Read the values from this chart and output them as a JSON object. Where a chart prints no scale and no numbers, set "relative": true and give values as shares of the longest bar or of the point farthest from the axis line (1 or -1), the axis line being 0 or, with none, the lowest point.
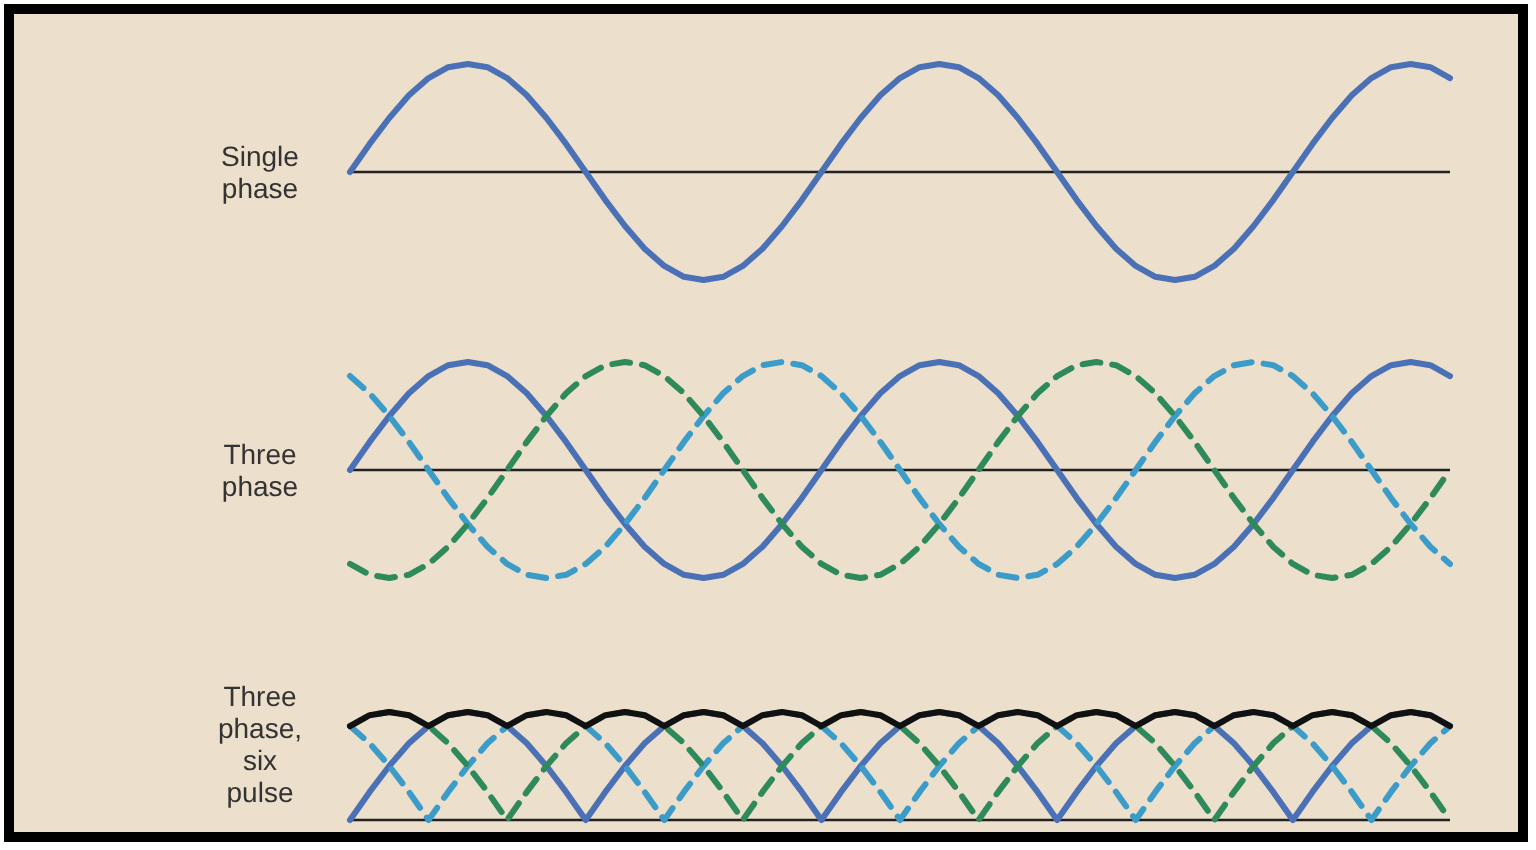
{
  "chart_data": [
    {
      "type": "line",
      "ylabel": "Single phase",
      "relative": true,
      "legend": false,
      "grid": false,
      "marker": "none",
      "categories": [
        null,
        null,
        null,
        null,
        null,
        null,
        null,
        null,
        null,
        null,
        null,
        null,
        null,
        null,
        null,
        null,
        null,
        null,
        null,
        null,
        null,
        null,
        null,
        null,
        null,
        null,
        null,
        null,
        null,
        null,
        null,
        null,
        null,
        null,
        null,
        null,
        null,
        null,
        null,
        null,
        null,
        null,
        null,
        null,
        null,
        null,
        null,
        null,
        null,
        null,
        null,
        null,
        null,
        null,
        null,
        null,
        null
      ],
      "series": [
        {
          "color": "#4a70b5",
          "line_style": "solid",
          "values": [
            0,
            0.26,
            0.5,
            0.71,
            0.87,
            0.97,
            1,
            0.97,
            0.87,
            0.71,
            0.5,
            0.26,
            0,
            -0.26,
            -0.5,
            -0.71,
            -0.87,
            -0.97,
            -1,
            -0.97,
            -0.87,
            -0.71,
            -0.5,
            -0.26,
            0,
            0.26,
            0.5,
            0.71,
            0.87,
            0.97,
            1,
            0.97,
            0.87,
            0.71,
            0.5,
            0.26,
            0,
            -0.26,
            -0.5,
            -0.71,
            -0.87,
            -0.97,
            -1,
            -0.97,
            -0.87,
            -0.71,
            -0.5,
            -0.26,
            0,
            0.26,
            0.5,
            0.71,
            0.87,
            0.97,
            1,
            0.97,
            0.87
          ]
        }
      ]
    },
    {
      "type": "line",
      "ylabel": "Three phase",
      "relative": true,
      "legend": false,
      "grid": false,
      "marker": "none",
      "categories": [
        null,
        null,
        null,
        null,
        null,
        null,
        null,
        null,
        null,
        null,
        null,
        null,
        null,
        null,
        null,
        null,
        null,
        null,
        null,
        null,
        null,
        null,
        null,
        null,
        null,
        null,
        null,
        null,
        null,
        null,
        null,
        null,
        null,
        null,
        null,
        null,
        null,
        null,
        null,
        null,
        null,
        null,
        null,
        null,
        null,
        null,
        null,
        null,
        null,
        null,
        null,
        null,
        null,
        null,
        null,
        null,
        null
      ],
      "series": [
        {
          "color": "#4a70b5",
          "line_style": "solid",
          "values": [
            0,
            0.26,
            0.5,
            0.71,
            0.87,
            0.97,
            1,
            0.97,
            0.87,
            0.71,
            0.5,
            0.26,
            0,
            -0.26,
            -0.5,
            -0.71,
            -0.87,
            -0.97,
            -1,
            -0.97,
            -0.87,
            -0.71,
            -0.5,
            -0.26,
            0,
            0.26,
            0.5,
            0.71,
            0.87,
            0.97,
            1,
            0.97,
            0.87,
            0.71,
            0.5,
            0.26,
            0,
            -0.26,
            -0.5,
            -0.71,
            -0.87,
            -0.97,
            -1,
            -0.97,
            -0.87,
            -0.71,
            -0.5,
            -0.26,
            0,
            0.26,
            0.5,
            0.71,
            0.87,
            0.97,
            1,
            0.97,
            0.87
          ]
        },
        {
          "color": "#3b9cc9",
          "line_style": "dashed",
          "values": [
            0.87,
            0.71,
            0.5,
            0.26,
            0,
            -0.26,
            -0.5,
            -0.71,
            -0.87,
            -0.97,
            -1,
            -0.97,
            -0.87,
            -0.71,
            -0.5,
            -0.26,
            0,
            0.26,
            0.5,
            0.71,
            0.87,
            0.97,
            1,
            0.97,
            0.87,
            0.71,
            0.5,
            0.26,
            0,
            -0.26,
            -0.5,
            -0.71,
            -0.87,
            -0.97,
            -1,
            -0.97,
            -0.87,
            -0.71,
            -0.5,
            -0.26,
            0,
            0.26,
            0.5,
            0.71,
            0.87,
            0.97,
            1,
            0.97,
            0.87,
            0.71,
            0.5,
            0.26,
            0,
            -0.26,
            -0.5,
            -0.71,
            -0.87
          ]
        },
        {
          "color": "#2e8a5a",
          "line_style": "dashed",
          "values": [
            -0.87,
            -0.97,
            -1,
            -0.97,
            -0.87,
            -0.71,
            -0.5,
            -0.26,
            0,
            0.26,
            0.5,
            0.71,
            0.87,
            0.97,
            1,
            0.97,
            0.87,
            0.71,
            0.5,
            0.26,
            0,
            -0.26,
            -0.5,
            -0.71,
            -0.87,
            -0.97,
            -1,
            -0.97,
            -0.87,
            -0.71,
            -0.5,
            -0.26,
            0,
            0.26,
            0.5,
            0.71,
            0.87,
            0.97,
            1,
            0.97,
            0.87,
            0.71,
            0.5,
            0.26,
            0,
            -0.26,
            -0.5,
            -0.71,
            -0.87,
            -0.97,
            -1,
            -0.97,
            -0.87,
            -0.71,
            -0.5,
            -0.26,
            0
          ]
        }
      ]
    },
    {
      "type": "line",
      "ylabel": "Three phase, six pulse",
      "relative": true,
      "legend": false,
      "grid": false,
      "marker": "none",
      "categories": [
        null,
        null,
        null,
        null,
        null,
        null,
        null,
        null,
        null,
        null,
        null,
        null,
        null,
        null,
        null,
        null,
        null,
        null,
        null,
        null,
        null,
        null,
        null,
        null,
        null,
        null,
        null,
        null,
        null,
        null,
        null,
        null,
        null,
        null,
        null,
        null,
        null,
        null,
        null,
        null,
        null,
        null,
        null,
        null,
        null,
        null,
        null,
        null,
        null,
        null,
        null,
        null,
        null,
        null,
        null,
        null,
        null
      ],
      "series": [
        {
          "color": "#4a70b5",
          "line_style": "solid",
          "values": [
            0,
            0.26,
            0.5,
            0.71,
            0.87,
            0.97,
            1,
            0.97,
            0.87,
            0.71,
            0.5,
            0.26,
            0,
            0.26,
            0.5,
            0.71,
            0.87,
            0.97,
            1,
            0.97,
            0.87,
            0.71,
            0.5,
            0.26,
            0,
            0.26,
            0.5,
            0.71,
            0.87,
            0.97,
            1,
            0.97,
            0.87,
            0.71,
            0.5,
            0.26,
            0,
            0.26,
            0.5,
            0.71,
            0.87,
            0.97,
            1,
            0.97,
            0.87,
            0.71,
            0.5,
            0.26,
            0,
            0.26,
            0.5,
            0.71,
            0.87,
            0.97,
            1,
            0.97,
            0.87
          ]
        },
        {
          "color": "#3b9cc9",
          "line_style": "dashed",
          "values": [
            0.87,
            0.71,
            0.5,
            0.26,
            0,
            0.26,
            0.5,
            0.71,
            0.87,
            0.97,
            1,
            0.97,
            0.87,
            0.71,
            0.5,
            0.26,
            0,
            0.26,
            0.5,
            0.71,
            0.87,
            0.97,
            1,
            0.97,
            0.87,
            0.71,
            0.5,
            0.26,
            0,
            0.26,
            0.5,
            0.71,
            0.87,
            0.97,
            1,
            0.97,
            0.87,
            0.71,
            0.5,
            0.26,
            0,
            0.26,
            0.5,
            0.71,
            0.87,
            0.97,
            1,
            0.97,
            0.87,
            0.71,
            0.5,
            0.26,
            0,
            0.26,
            0.5,
            0.71,
            0.87
          ]
        },
        {
          "color": "#2e8a5a",
          "line_style": "dashed",
          "values": [
            0.87,
            0.97,
            1,
            0.97,
            0.87,
            0.71,
            0.5,
            0.26,
            0,
            0.26,
            0.5,
            0.71,
            0.87,
            0.97,
            1,
            0.97,
            0.87,
            0.71,
            0.5,
            0.26,
            0,
            0.26,
            0.5,
            0.71,
            0.87,
            0.97,
            1,
            0.97,
            0.87,
            0.71,
            0.5,
            0.26,
            0,
            0.26,
            0.5,
            0.71,
            0.87,
            0.97,
            1,
            0.97,
            0.87,
            0.71,
            0.5,
            0.26,
            0,
            0.26,
            0.5,
            0.71,
            0.87,
            0.97,
            1,
            0.97,
            0.87,
            0.71,
            0.5,
            0.26,
            0
          ]
        },
        {
          "color": "#111111",
          "line_style": "solid",
          "values": [
            0.87,
            0.97,
            1,
            0.97,
            0.87,
            0.97,
            1,
            0.97,
            0.87,
            0.97,
            1,
            0.97,
            0.87,
            0.97,
            1,
            0.97,
            0.87,
            0.97,
            1,
            0.97,
            0.87,
            0.97,
            1,
            0.97,
            0.87,
            0.97,
            1,
            0.97,
            0.87,
            0.97,
            1,
            0.97,
            0.87,
            0.97,
            1,
            0.97,
            0.87,
            0.97,
            1,
            0.97,
            0.87,
            0.97,
            1,
            0.97,
            0.87,
            0.97,
            1,
            0.97,
            0.87,
            0.97,
            1,
            0.97,
            0.87,
            0.97,
            1,
            0.97,
            0.87
          ]
        }
      ]
    }
  ]
}
